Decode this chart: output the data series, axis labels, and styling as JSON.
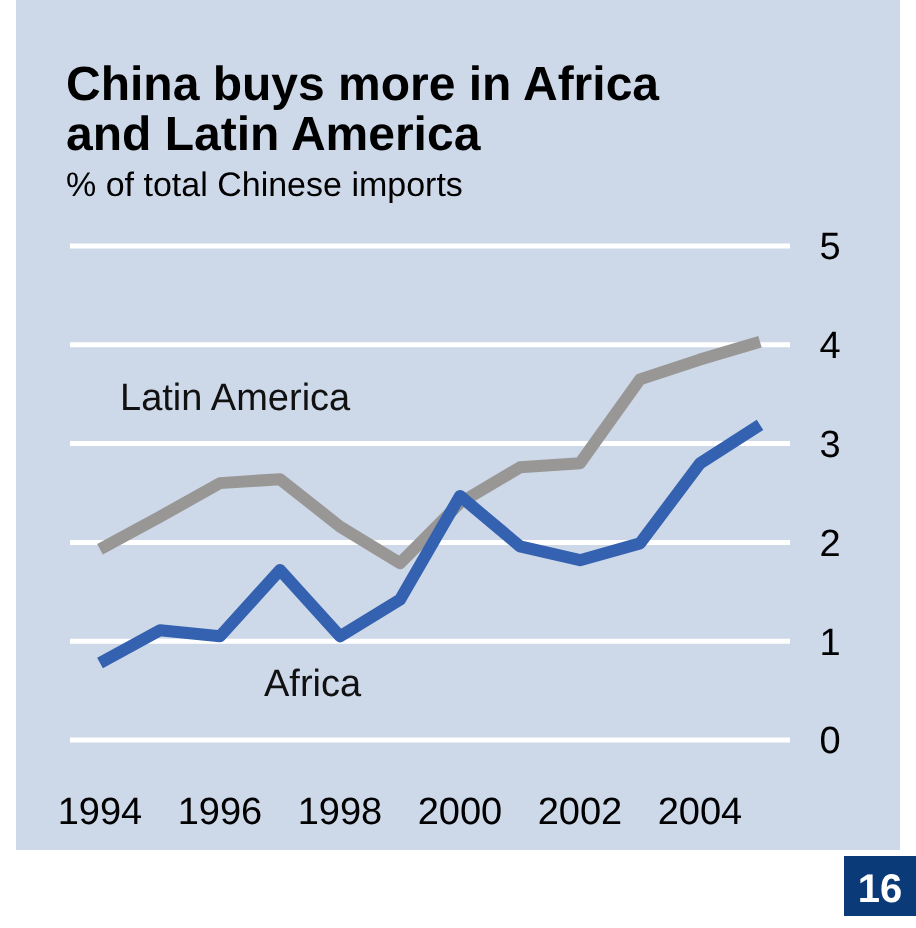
{
  "chart_data": {
    "type": "line",
    "title": "China buys more in Africa and Latin America",
    "subtitle": "% of total Chinese imports",
    "x": [
      1994,
      1995,
      1996,
      1997,
      1998,
      1999,
      2000,
      2001,
      2002,
      2003,
      2004,
      2005
    ],
    "series": [
      {
        "name": "Latin America",
        "color": "#999795",
        "values": [
          1.93,
          2.26,
          2.6,
          2.64,
          2.16,
          1.79,
          2.4,
          2.76,
          2.8,
          3.65,
          3.85,
          4.03
        ]
      },
      {
        "name": "Africa",
        "color": "#3461b0",
        "values": [
          0.78,
          1.11,
          1.05,
          1.72,
          1.05,
          1.42,
          2.47,
          1.96,
          1.82,
          1.99,
          2.8,
          3.19
        ]
      }
    ],
    "xlim": [
      1993.5,
      2005.5
    ],
    "xticks": [
      1994,
      1996,
      1998,
      2000,
      2002,
      2004
    ],
    "ylim": [
      0,
      5
    ],
    "yticks": [
      0,
      1,
      2,
      3,
      4,
      5
    ],
    "grid": "y",
    "marker": "none",
    "line_style": "solid",
    "annotations": [
      "16"
    ]
  }
}
